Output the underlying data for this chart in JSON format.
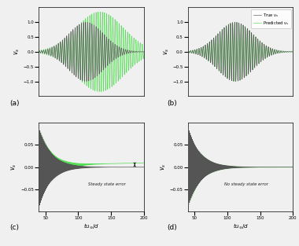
{
  "fig_width": 3.8,
  "fig_height": 3.13,
  "dpi": 100,
  "color_true": "#555555",
  "color_predicted": "#44dd44",
  "legend_true": "True $v_s$",
  "legend_predicted": "Predicted $v_s$",
  "ylabel": "$v_s$",
  "xlabel_bottom": "$tu_{\\infty}/d$",
  "annotation_c": "Steady state error",
  "annotation_d": "No steady state error",
  "ab_ylim": [
    -1.5,
    1.5
  ],
  "cd_ylim": [
    -0.1,
    0.1
  ],
  "cd_xticks": [
    50,
    100,
    150,
    200
  ],
  "ab_yticks": [
    -1.0,
    -0.5,
    0.0,
    0.5,
    1.0
  ],
  "cd_yticks": [
    -0.05,
    0.0,
    0.05
  ],
  "background_color": "#f0f0f0"
}
